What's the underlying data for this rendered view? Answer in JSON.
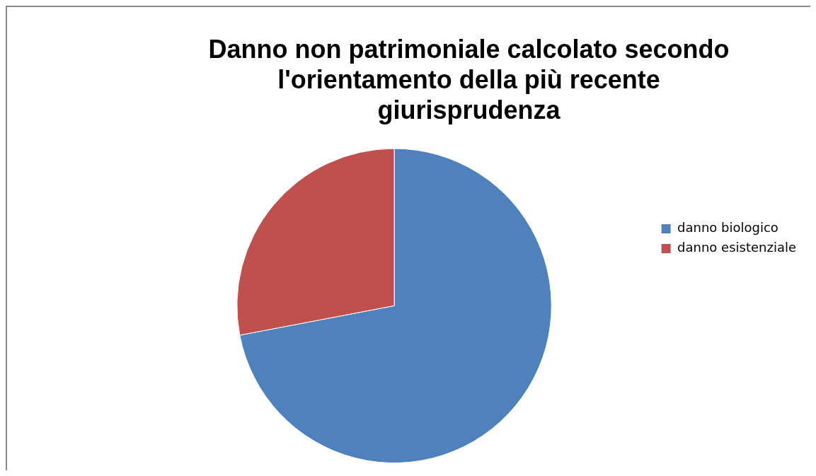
{
  "chart_data": {
    "type": "pie",
    "title": "Danno non patrimoniale calcolato secondo l'orientamento della più recente giurisprudenza",
    "categories": [
      "danno biologico",
      "danno esistenziale"
    ],
    "values": [
      72,
      28
    ],
    "colors": [
      "#4f81bd",
      "#c0504d"
    ],
    "legend": "right"
  }
}
